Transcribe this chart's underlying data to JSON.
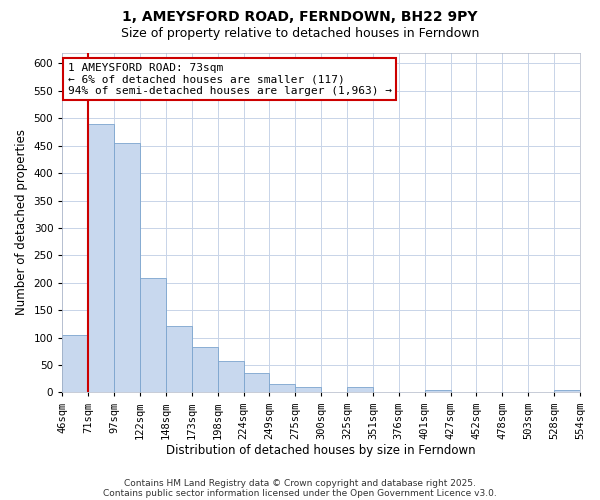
{
  "title": "1, AMEYSFORD ROAD, FERNDOWN, BH22 9PY",
  "subtitle": "Size of property relative to detached houses in Ferndown",
  "xlabel": "Distribution of detached houses by size in Ferndown",
  "ylabel": "Number of detached properties",
  "bin_labels": [
    "46sqm",
    "71sqm",
    "97sqm",
    "122sqm",
    "148sqm",
    "173sqm",
    "198sqm",
    "224sqm",
    "249sqm",
    "275sqm",
    "300sqm",
    "325sqm",
    "351sqm",
    "376sqm",
    "401sqm",
    "427sqm",
    "452sqm",
    "478sqm",
    "503sqm",
    "528sqm",
    "554sqm"
  ],
  "bar_values": [
    105,
    490,
    455,
    208,
    122,
    82,
    58,
    36,
    15,
    10,
    0,
    10,
    0,
    0,
    5,
    0,
    0,
    0,
    0,
    5
  ],
  "bar_color": "#c8d8ee",
  "bar_edge_color": "#7ba4ce",
  "vline_x_index": 1,
  "vline_color": "#cc0000",
  "ylim": [
    0,
    620
  ],
  "yticks": [
    0,
    50,
    100,
    150,
    200,
    250,
    300,
    350,
    400,
    450,
    500,
    550,
    600
  ],
  "annotation_title": "1 AMEYSFORD ROAD: 73sqm",
  "annotation_line1": "← 6% of detached houses are smaller (117)",
  "annotation_line2": "94% of semi-detached houses are larger (1,963) →",
  "annotation_box_color": "#ffffff",
  "annotation_box_edge": "#cc0000",
  "footer1": "Contains HM Land Registry data © Crown copyright and database right 2025.",
  "footer2": "Contains public sector information licensed under the Open Government Licence v3.0.",
  "background_color": "#ffffff",
  "grid_color": "#c8d4e8",
  "title_fontsize": 10,
  "subtitle_fontsize": 9,
  "axis_label_fontsize": 8.5,
  "tick_fontsize": 7.5,
  "annotation_fontsize": 8,
  "footer_fontsize": 6.5
}
